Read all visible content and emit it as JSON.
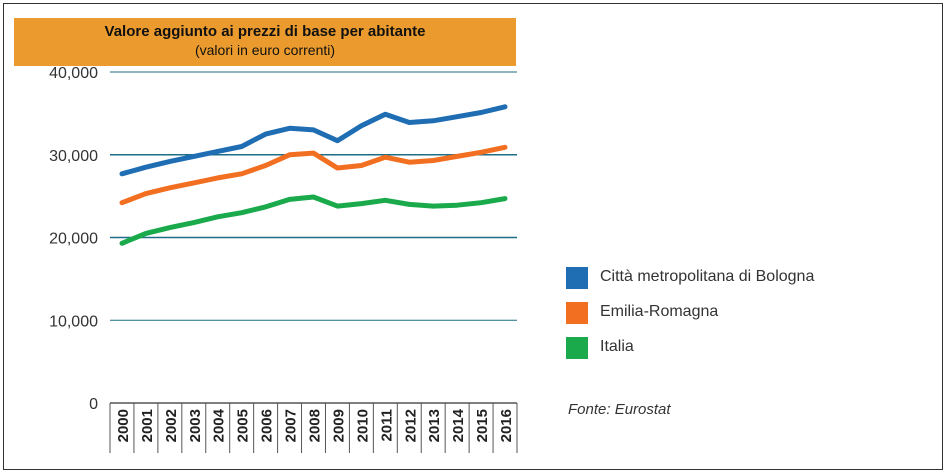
{
  "chart_data": {
    "type": "line",
    "title": "Valore aggiunto ai prezzi di base per abitante",
    "subtitle": "(valori in euro correnti)",
    "categories": [
      "2000",
      "2001",
      "2002",
      "2003",
      "2004",
      "2005",
      "2006",
      "2007",
      "2008",
      "2009",
      "2010",
      "2011",
      "2012",
      "2013",
      "2014",
      "2015",
      "2016"
    ],
    "ylim": [
      0,
      40000
    ],
    "y_ticks": [
      0,
      10000,
      20000,
      30000,
      40000
    ],
    "y_tick_labels": [
      "0",
      "10,000",
      "20,000",
      "30,000",
      "40,000"
    ],
    "series": [
      {
        "name": "Città metropolitana di Bologna",
        "color": "#1f6db3",
        "values": [
          27700,
          28500,
          29200,
          29800,
          30400,
          31000,
          32500,
          33200,
          33000,
          31700,
          33500,
          34900,
          33900,
          34100,
          34600,
          35100,
          35800
        ]
      },
      {
        "name": "Emilia-Romagna",
        "color": "#f26f21",
        "values": [
          24200,
          25300,
          26000,
          26600,
          27200,
          27700,
          28700,
          30000,
          30200,
          28400,
          28700,
          29700,
          29100,
          29300,
          29800,
          30300,
          30900
        ]
      },
      {
        "name": "Italia",
        "color": "#1aaa4b",
        "values": [
          19300,
          20500,
          21200,
          21800,
          22500,
          23000,
          23700,
          24600,
          24900,
          23800,
          24100,
          24500,
          24000,
          23800,
          23900,
          24200,
          24700
        ]
      }
    ],
    "legend_position": "right",
    "source": "Fonte: Eurostat"
  }
}
